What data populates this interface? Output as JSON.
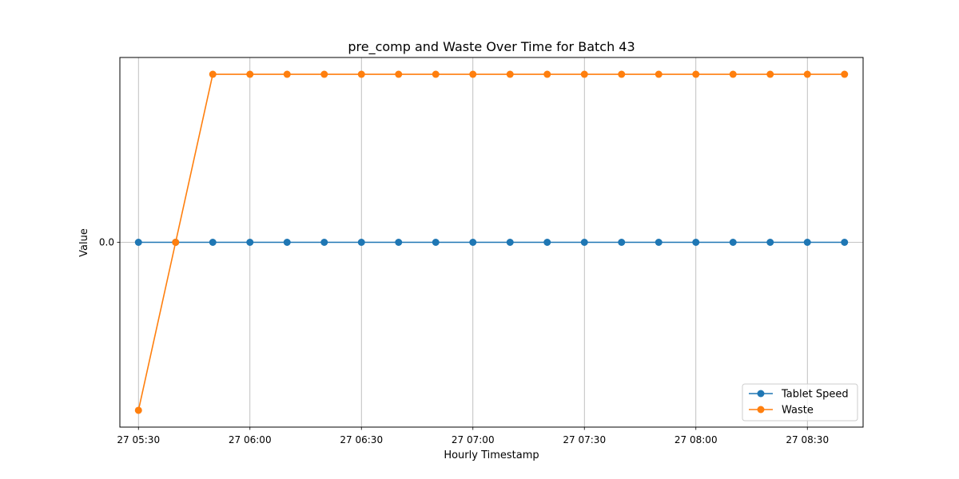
{
  "chart_data": {
    "type": "line",
    "title": "pre_comp and Waste Over Time for Batch 43",
    "xlabel": "Hourly Timestamp",
    "ylabel": "Value",
    "x": [
      "05:30",
      "05:40",
      "05:50",
      "06:00",
      "06:10",
      "06:20",
      "06:30",
      "06:40",
      "06:50",
      "07:00",
      "07:10",
      "07:20",
      "07:30",
      "07:40",
      "07:50",
      "08:00",
      "08:10",
      "08:20",
      "08:30",
      "08:40"
    ],
    "x_ticks": [
      {
        "x": "05:30",
        "label": "27 05:30"
      },
      {
        "x": "06:00",
        "label": "27 06:00"
      },
      {
        "x": "06:30",
        "label": "27 06:30"
      },
      {
        "x": "07:00",
        "label": "27 07:00"
      },
      {
        "x": "07:30",
        "label": "27 07:30"
      },
      {
        "x": "08:00",
        "label": "27 08:00"
      },
      {
        "x": "08:30",
        "label": "27 08:30"
      }
    ],
    "y_ticks": [
      {
        "value": 0,
        "label": "0.0"
      }
    ],
    "ylim": [
      -1.1,
      1.1
    ],
    "xlim": [
      "05:25",
      "08:45"
    ],
    "grid": true,
    "legend": "bottom-right",
    "series": [
      {
        "name": "Tablet Speed",
        "color": "#1f77b4",
        "values": [
          0,
          0,
          0,
          0,
          0,
          0,
          0,
          0,
          0,
          0,
          0,
          0,
          0,
          0,
          0,
          0,
          0,
          0,
          0,
          0
        ]
      },
      {
        "name": "Waste",
        "color": "#ff7f0e",
        "values": [
          -1,
          0,
          1,
          1,
          1,
          1,
          1,
          1,
          1,
          1,
          1,
          1,
          1,
          1,
          1,
          1,
          1,
          1,
          1,
          1
        ]
      }
    ]
  }
}
